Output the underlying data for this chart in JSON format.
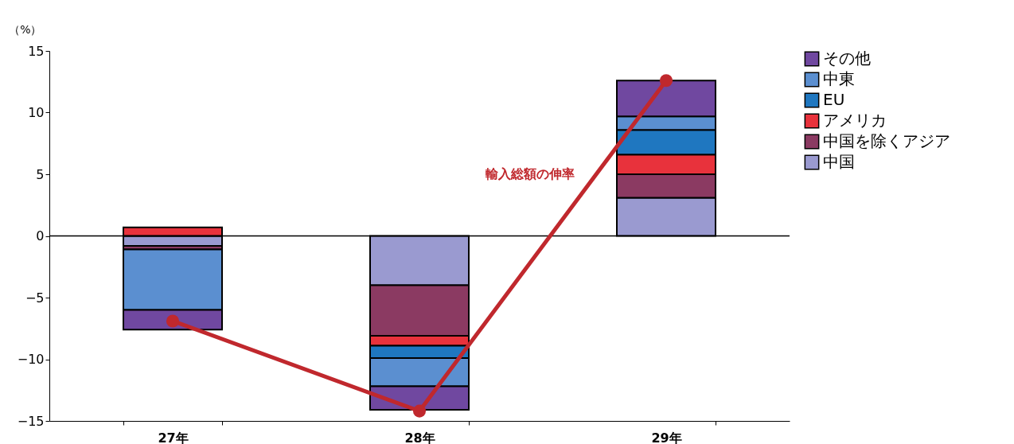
{
  "chart_data": {
    "type": "bar",
    "stacked": true,
    "ylabel": "（%）",
    "categories": [
      "27年",
      "28年",
      "29年"
    ],
    "series": [
      {
        "name": "中国",
        "color": "#9a9ad0",
        "values": [
          -0.8,
          -4.0,
          3.1
        ]
      },
      {
        "name": "中国を除くアジア",
        "color": "#8b3a62",
        "values": [
          -0.3,
          -4.1,
          1.9
        ]
      },
      {
        "name": "アメリカ",
        "color": "#e8323c",
        "values": [
          0.7,
          -0.8,
          1.6
        ]
      },
      {
        "name": "EU",
        "color": "#1f77c0",
        "values": [
          null,
          -1.0,
          2.0
        ]
      },
      {
        "name": "中東",
        "color": "#5b8fd0",
        "values": [
          -4.9,
          -2.3,
          1.1
        ]
      },
      {
        "name": "その他",
        "color": "#7048a0",
        "values": [
          -1.6,
          -1.9,
          2.9
        ]
      },
      {
        "name": "輸入総額の伸率",
        "type": "line",
        "color": "#c0282d",
        "marker": "circle",
        "values": [
          -6.9,
          -14.2,
          12.6
        ]
      }
    ],
    "ylim": [
      -15,
      15
    ],
    "yticks": [
      -15,
      -10,
      -5,
      0,
      5,
      10,
      15
    ],
    "ref_lines": [
      {
        "axis": "y",
        "value": 0,
        "color": "#000000"
      }
    ],
    "grid": false,
    "legend": "right"
  }
}
